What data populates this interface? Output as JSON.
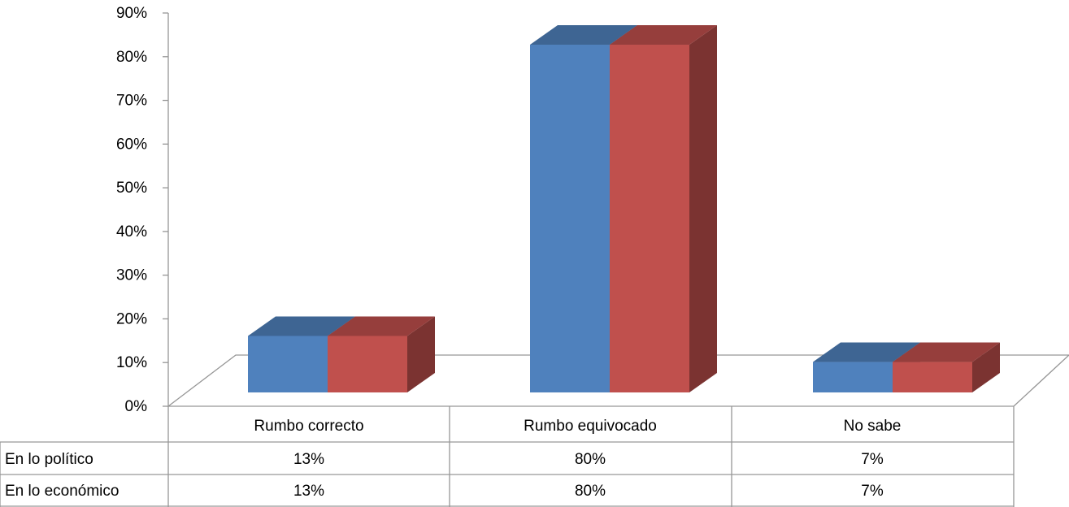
{
  "chart_data": {
    "type": "bar",
    "categories": [
      "Rumbo correcto",
      "Rumbo equivocado",
      "No sabe"
    ],
    "series": [
      {
        "name": "En lo político",
        "values": [
          13,
          80,
          7
        ],
        "labels": [
          "13%",
          "80%",
          "7%"
        ],
        "color": "#4F81BD"
      },
      {
        "name": "En lo económico",
        "values": [
          13,
          80,
          7
        ],
        "labels": [
          "13%",
          "80%",
          "7%"
        ],
        "color": "#C0504D"
      }
    ],
    "ylim": [
      0,
      90
    ],
    "y_ticks": [
      "0%",
      "10%",
      "20%",
      "30%",
      "40%",
      "50%",
      "60%",
      "70%",
      "80%",
      "90%"
    ],
    "data_table": true,
    "style": "3d-clustered-column",
    "grid": false
  }
}
